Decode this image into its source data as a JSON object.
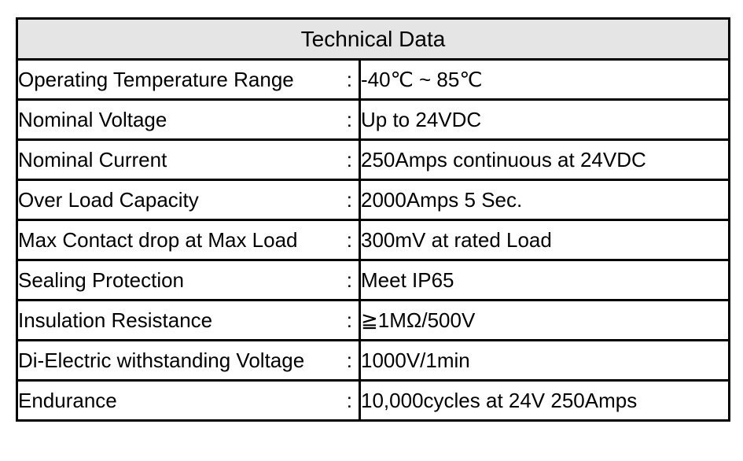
{
  "table": {
    "title": "Technical Data",
    "separator": ":",
    "rows": [
      {
        "label": "Operating Temperature Range",
        "value": "-40℃ ~ 85℃"
      },
      {
        "label": "Nominal Voltage",
        "value": "Up to 24VDC"
      },
      {
        "label": "Nominal Current",
        "value": "250Amps continuous at 24VDC"
      },
      {
        "label": "Over Load Capacity",
        "value": "2000Amps 5 Sec."
      },
      {
        "label": "Max Contact drop at Max Load",
        "value": "300mV at rated Load"
      },
      {
        "label": "Sealing Protection",
        "value": "Meet IP65"
      },
      {
        "label": "Insulation Resistance",
        "value": "≧1MΩ/500V"
      },
      {
        "label": "Di-Electric withstanding Voltage",
        "value": "1000V/1min"
      },
      {
        "label": "Endurance",
        "value": "10,000cycles at 24V 250Amps"
      }
    ]
  }
}
